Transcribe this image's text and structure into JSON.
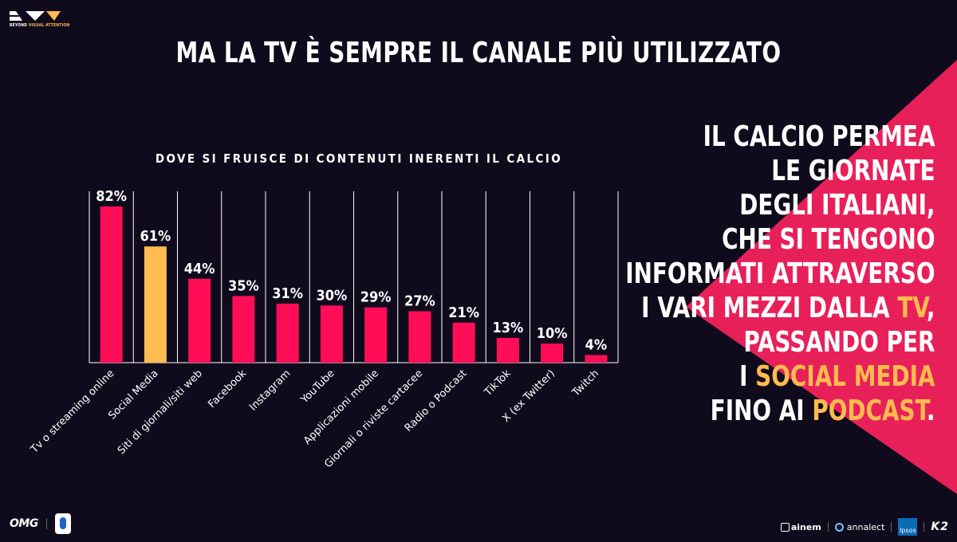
{
  "logo": {
    "text_prefix": "BEYOND",
    "text_accent": "VISUAL ATTENTION"
  },
  "title": "MA LA TV È SEMPRE IL CANALE PIÙ UTILIZZATO",
  "colors": {
    "background": "#100b1c",
    "bar": "#ff0d57",
    "highlight_bar": "#ffbb4f",
    "accent_text": "#ffbb4f",
    "triangle": "#e8205a"
  },
  "chart_data": {
    "type": "bar",
    "title": "DOVE SI FRUISCE DI CONTENUTI INERENTI IL CALCIO",
    "categories": [
      "Tv o streaming online",
      "Social Media",
      "Siti di giornali/siti web",
      "Facebook",
      "Instagram",
      "YouTube",
      "Applicazioni mobile",
      "Giornali o riviste cartacee",
      "Radio o Podcast",
      "TikTok",
      "X (ex Twitter)",
      "Twitch"
    ],
    "values": [
      82,
      61,
      44,
      35,
      31,
      30,
      29,
      27,
      21,
      13,
      10,
      4
    ],
    "data_labels": [
      "82%",
      "61%",
      "44%",
      "35%",
      "31%",
      "30%",
      "29%",
      "27%",
      "21%",
      "13%",
      "10%",
      "4%"
    ],
    "highlight_index": 1,
    "unit": "%",
    "ylim": [
      0,
      82
    ],
    "xlabel": "",
    "ylabel": "",
    "grid": true
  },
  "side_text": {
    "line1": "IL CALCIO PERMEA",
    "line2": "LE GIORNATE",
    "line3": "DEGLI ITALIANI,",
    "line4": "CHE SI TENGONO",
    "line5": "INFORMATI ATTRAVERSO",
    "line6_prefix": "I VARI MEZZI DALLA ",
    "line6_highlight": "TV",
    "line6_suffix": ",",
    "line7": "PASSANDO PER",
    "line8_prefix": "I ",
    "line8_highlight": "SOCIAL MEDIA",
    "line9_prefix": "FINO AI ",
    "line9_highlight": "PODCAST",
    "line9_suffix": "."
  },
  "footer": {
    "omg": "OMG",
    "ainem": "ainem",
    "annalect": "annalect",
    "ipsos": "Ipsos",
    "k2": "K2"
  }
}
